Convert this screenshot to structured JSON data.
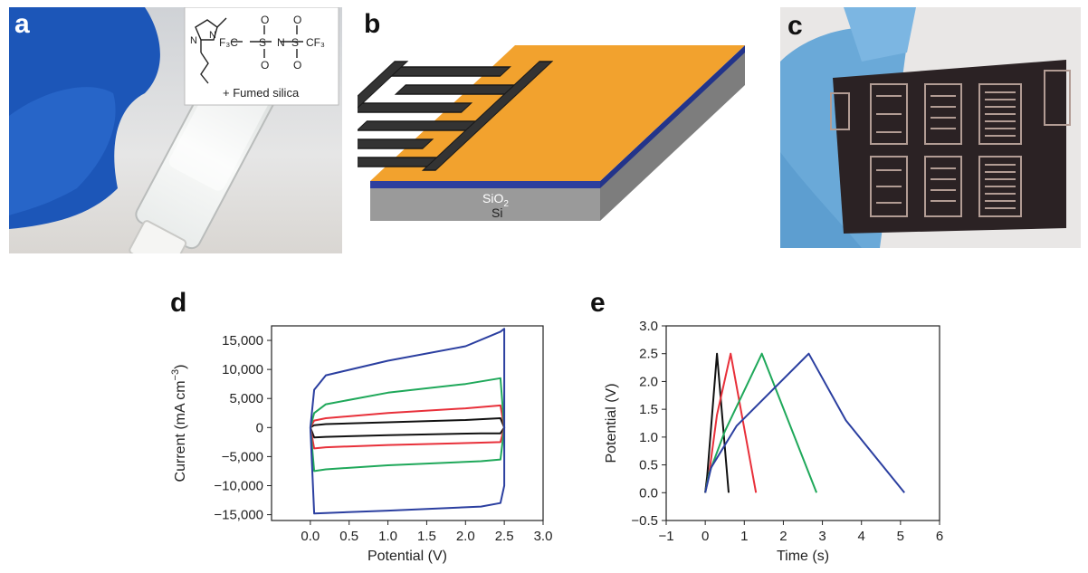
{
  "panels": {
    "a": {
      "label": "a",
      "caption": "+ Fumed silica"
    },
    "b": {
      "label": "b",
      "layer_sio2": "SiO",
      "layer_sio2_sub": "2",
      "layer_si": "Si"
    },
    "c": {
      "label": "c"
    },
    "d": {
      "label": "d"
    },
    "e": {
      "label": "e"
    }
  },
  "colors": {
    "black": "#111111",
    "red": "#e8303a",
    "green": "#1fa85a",
    "blue": "#2b3fa0",
    "gold": "#f2a22e",
    "substrate": "#9a9a9a",
    "sio2": "#2d3f9e"
  },
  "chart_data": [
    {
      "type": "line",
      "panel": "d",
      "xlabel": "Potential (V)",
      "ylabel": "Current (mA cm",
      "ylabel_sup": "−3",
      "ylabel_end": ")",
      "xlim": [
        -0.5,
        3.0
      ],
      "ylim": [
        -16000,
        17500
      ],
      "xticks": [
        "0.0",
        "0.5",
        "1.0",
        "1.5",
        "2.0",
        "2.5",
        "3.0"
      ],
      "xtick_values": [
        0.0,
        0.5,
        1.0,
        1.5,
        2.0,
        2.5,
        3.0
      ],
      "yticks": [
        "15,000",
        "10,000",
        "5,000",
        "0",
        "−5,000",
        "−10,000",
        "−15,000"
      ],
      "ytick_values": [
        15000,
        10000,
        5000,
        0,
        -5000,
        -10000,
        -15000
      ],
      "series": [
        {
          "color": "black",
          "x": [
            0.0,
            0.05,
            0.2,
            1.0,
            2.0,
            2.45,
            2.5,
            2.45,
            2.2,
            1.0,
            0.2,
            0.05,
            0.0
          ],
          "y": [
            0,
            400,
            600,
            900,
            1300,
            1600,
            0,
            -1000,
            -1000,
            -1300,
            -1600,
            -1700,
            0
          ]
        },
        {
          "color": "red",
          "x": [
            0.0,
            0.05,
            0.2,
            1.0,
            2.0,
            2.45,
            2.5,
            2.45,
            2.2,
            1.0,
            0.2,
            0.05,
            0.0
          ],
          "y": [
            0,
            1200,
            1600,
            2500,
            3300,
            3800,
            0,
            -2500,
            -2600,
            -3000,
            -3400,
            -3600,
            0
          ]
        },
        {
          "color": "green",
          "x": [
            0.0,
            0.05,
            0.2,
            1.0,
            2.0,
            2.45,
            2.5,
            2.45,
            2.2,
            1.0,
            0.2,
            0.05,
            0.0
          ],
          "y": [
            0,
            2500,
            4000,
            6000,
            7500,
            8500,
            0,
            -5500,
            -5800,
            -6500,
            -7200,
            -7500,
            0
          ]
        },
        {
          "color": "blue",
          "x": [
            0.0,
            0.05,
            0.2,
            1.0,
            2.0,
            2.45,
            2.5,
            2.5,
            2.45,
            2.2,
            1.0,
            0.2,
            0.05,
            0.0
          ],
          "y": [
            0,
            6500,
            9000,
            11500,
            14000,
            16500,
            17000,
            -10000,
            -13000,
            -13600,
            -14300,
            -14700,
            -14800,
            0
          ]
        }
      ]
    },
    {
      "type": "line",
      "panel": "e",
      "xlabel": "Time (s)",
      "ylabel": "Potential (V)",
      "xlim": [
        -1,
        6
      ],
      "ylim": [
        -0.5,
        3.0
      ],
      "xticks": [
        "−1",
        "0",
        "1",
        "2",
        "3",
        "4",
        "5",
        "6"
      ],
      "xtick_values": [
        -1,
        0,
        1,
        2,
        3,
        4,
        5,
        6
      ],
      "yticks": [
        "3.0",
        "2.5",
        "2.0",
        "1.5",
        "1.0",
        "0.5",
        "0.0",
        "−0.5"
      ],
      "ytick_values": [
        3.0,
        2.5,
        2.0,
        1.5,
        1.0,
        0.5,
        0.0,
        -0.5
      ],
      "series": [
        {
          "color": "black",
          "x": [
            0.0,
            0.05,
            0.3,
            0.6
          ],
          "y": [
            0.0,
            0.3,
            2.5,
            0.0
          ]
        },
        {
          "color": "red",
          "x": [
            0.0,
            0.1,
            0.3,
            0.65,
            1.3
          ],
          "y": [
            0.0,
            0.35,
            1.4,
            2.5,
            0.0
          ]
        },
        {
          "color": "green",
          "x": [
            0.0,
            0.1,
            0.5,
            1.45,
            2.85
          ],
          "y": [
            0.0,
            0.35,
            1.1,
            2.5,
            0.0
          ]
        },
        {
          "color": "blue",
          "x": [
            0.0,
            0.15,
            0.8,
            2.65,
            3.6,
            5.1
          ],
          "y": [
            0.0,
            0.45,
            1.2,
            2.5,
            1.3,
            0.0
          ]
        }
      ]
    }
  ]
}
